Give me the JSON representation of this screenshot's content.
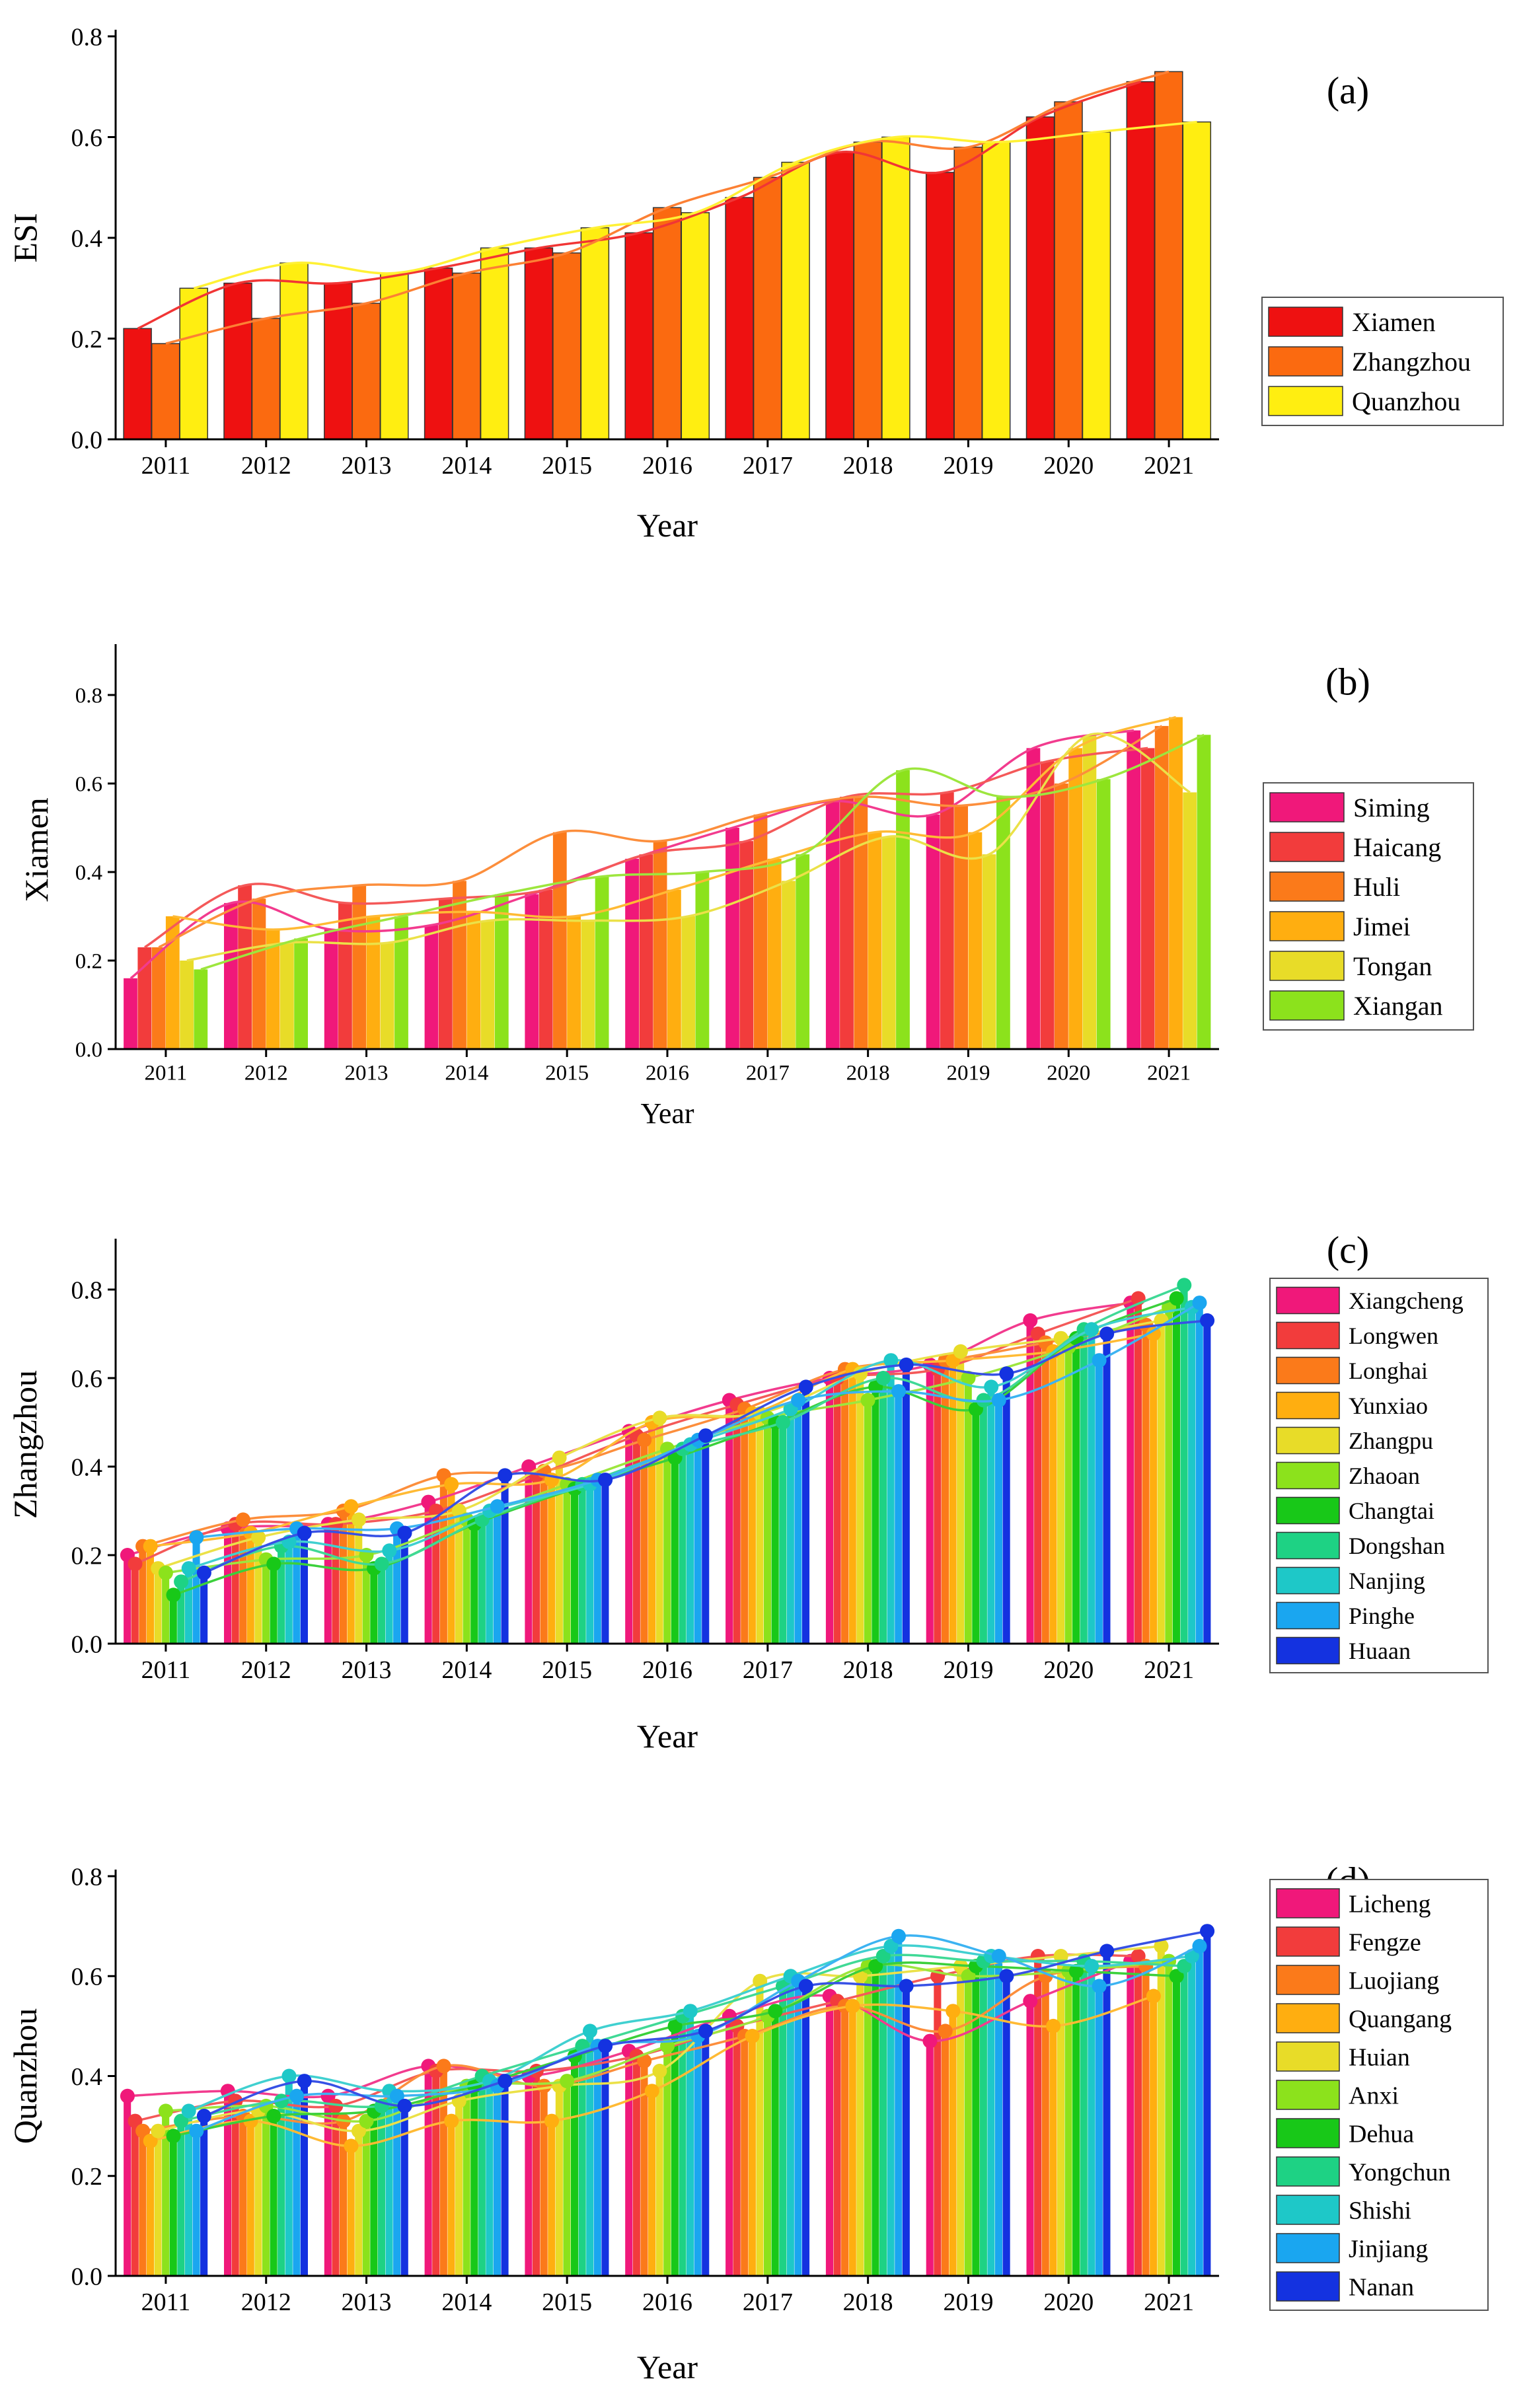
{
  "chart_data": [
    {
      "panel_label": "(a)",
      "type": "bar",
      "xlabel": "Year",
      "ylabel": "ESI",
      "ylim": [
        0,
        0.8
      ],
      "yticks": [
        "0.0",
        "0.2",
        "0.4",
        "0.6",
        "0.8"
      ],
      "categories": [
        "2011",
        "2012",
        "2013",
        "2014",
        "2015",
        "2016",
        "2017",
        "2018",
        "2019",
        "2020",
        "2021"
      ],
      "legend_position": "right",
      "trend_lines": true,
      "series": [
        {
          "name": "Xiamen",
          "color": "#ee1111",
          "values": [
            0.22,
            0.31,
            0.31,
            0.34,
            0.38,
            0.41,
            0.48,
            0.57,
            0.53,
            0.64,
            0.71
          ]
        },
        {
          "name": "Zhangzhou",
          "color": "#fb6a10",
          "values": [
            0.19,
            0.24,
            0.27,
            0.33,
            0.37,
            0.46,
            0.52,
            0.59,
            0.58,
            0.67,
            0.73
          ]
        },
        {
          "name": "Quanzhou",
          "color": "#ffee11",
          "values": [
            0.3,
            0.35,
            0.33,
            0.38,
            0.42,
            0.45,
            0.55,
            0.6,
            0.59,
            0.61,
            0.63
          ]
        }
      ]
    },
    {
      "panel_label": "(b)",
      "type": "bar",
      "xlabel": "Year",
      "ylabel": "Xiamen",
      "ylim": [
        0,
        0.9
      ],
      "yticks": [
        "0.0",
        "0.2",
        "0.4",
        "0.6",
        "0.8"
      ],
      "categories": [
        "2011",
        "2012",
        "2013",
        "2014",
        "2015",
        "2016",
        "2017",
        "2018",
        "2019",
        "2020",
        "2021"
      ],
      "legend_position": "right",
      "trend_lines": true,
      "series": [
        {
          "name": "Siming",
          "color": "#f0187a",
          "values": [
            0.16,
            0.33,
            0.27,
            0.28,
            0.35,
            0.43,
            0.5,
            0.56,
            0.53,
            0.68,
            0.72
          ]
        },
        {
          "name": "Haicang",
          "color": "#f23c3c",
          "values": [
            0.23,
            0.37,
            0.33,
            0.34,
            0.36,
            0.44,
            0.47,
            0.57,
            0.58,
            0.65,
            0.68
          ]
        },
        {
          "name": "Huli",
          "color": "#fb7a1a",
          "values": [
            0.23,
            0.34,
            0.37,
            0.38,
            0.49,
            0.47,
            0.53,
            0.57,
            0.55,
            0.6,
            0.73
          ]
        },
        {
          "name": "Jimei",
          "color": "#ffae10",
          "values": [
            0.3,
            0.27,
            0.3,
            0.31,
            0.3,
            0.36,
            0.43,
            0.49,
            0.49,
            0.68,
            0.75
          ]
        },
        {
          "name": "Tongan",
          "color": "#e8dc28",
          "values": [
            0.2,
            0.24,
            0.24,
            0.29,
            0.29,
            0.3,
            0.38,
            0.48,
            0.44,
            0.71,
            0.58
          ]
        },
        {
          "name": "Xiangan",
          "color": "#8ce21c",
          "values": [
            0.18,
            0.25,
            0.3,
            0.35,
            0.39,
            0.4,
            0.44,
            0.63,
            0.57,
            0.61,
            0.71
          ]
        }
      ]
    },
    {
      "panel_label": "(c)",
      "type": "bar",
      "xlabel": "Year",
      "ylabel": "Zhangzhou",
      "ylim": [
        0,
        0.9
      ],
      "yticks": [
        "0.0",
        "0.2",
        "0.4",
        "0.6",
        "0.8"
      ],
      "categories": [
        "2011",
        "2012",
        "2013",
        "2014",
        "2015",
        "2016",
        "2017",
        "2018",
        "2019",
        "2020",
        "2021"
      ],
      "legend_position": "right",
      "trend_lines": true,
      "series": [
        {
          "name": "Xiangcheng",
          "color": "#f0187a",
          "values": [
            0.2,
            0.26,
            0.27,
            0.32,
            0.4,
            0.48,
            0.55,
            0.6,
            0.63,
            0.73,
            0.77
          ]
        },
        {
          "name": "Longwen",
          "color": "#f23c3c",
          "values": [
            0.18,
            0.27,
            0.27,
            0.3,
            0.38,
            0.47,
            0.54,
            0.6,
            0.62,
            0.7,
            0.78
          ]
        },
        {
          "name": "Longhai",
          "color": "#fb7a1a",
          "values": [
            0.22,
            0.28,
            0.3,
            0.38,
            0.39,
            0.46,
            0.53,
            0.62,
            0.64,
            0.68,
            0.72
          ]
        },
        {
          "name": "Yunxiao",
          "color": "#ffae10",
          "values": [
            0.22,
            0.25,
            0.31,
            0.36,
            0.37,
            0.5,
            0.52,
            0.62,
            0.64,
            0.66,
            0.7
          ]
        },
        {
          "name": "Zhangpu",
          "color": "#e8dc28",
          "values": [
            0.17,
            0.24,
            0.28,
            0.3,
            0.42,
            0.51,
            0.52,
            0.61,
            0.66,
            0.69,
            0.73
          ]
        },
        {
          "name": "Zhaoan",
          "color": "#8ce21c",
          "values": [
            0.16,
            0.19,
            0.2,
            0.28,
            0.36,
            0.44,
            0.51,
            0.55,
            0.6,
            0.67,
            0.76
          ]
        },
        {
          "name": "Changtai",
          "color": "#18c818",
          "values": [
            0.11,
            0.18,
            0.17,
            0.27,
            0.35,
            0.42,
            0.5,
            0.58,
            0.53,
            0.69,
            0.78
          ]
        },
        {
          "name": "Dongshan",
          "color": "#1ed284",
          "values": [
            0.14,
            0.22,
            0.18,
            0.28,
            0.36,
            0.44,
            0.5,
            0.6,
            0.55,
            0.71,
            0.81
          ]
        },
        {
          "name": "Nanjing",
          "color": "#1ec8c8",
          "values": [
            0.17,
            0.23,
            0.21,
            0.3,
            0.36,
            0.45,
            0.53,
            0.64,
            0.58,
            0.71,
            0.76
          ]
        },
        {
          "name": "Pinghe",
          "color": "#1aa6f0",
          "values": [
            0.24,
            0.26,
            0.26,
            0.31,
            0.37,
            0.46,
            0.55,
            0.57,
            0.55,
            0.64,
            0.77
          ]
        },
        {
          "name": "Huaan",
          "color": "#1432e0",
          "values": [
            0.16,
            0.25,
            0.25,
            0.38,
            0.37,
            0.47,
            0.58,
            0.63,
            0.61,
            0.7,
            0.73
          ]
        }
      ]
    },
    {
      "panel_label": "(d)",
      "type": "bar",
      "xlabel": "Year",
      "ylabel": "Quanzhou",
      "ylim": [
        0,
        0.8
      ],
      "yticks": [
        "0.0",
        "0.2",
        "0.4",
        "0.6",
        "0.8"
      ],
      "categories": [
        "2011",
        "2012",
        "2013",
        "2014",
        "2015",
        "2016",
        "2017",
        "2018",
        "2019",
        "2020",
        "2021"
      ],
      "legend_position": "right",
      "trend_lines": true,
      "series": [
        {
          "name": "Licheng",
          "color": "#f0187a",
          "values": [
            0.36,
            0.37,
            0.36,
            0.42,
            0.4,
            0.45,
            0.52,
            0.56,
            0.47,
            0.55,
            0.63
          ]
        },
        {
          "name": "Fengze",
          "color": "#f23c3c",
          "values": [
            0.31,
            0.35,
            0.34,
            0.41,
            0.41,
            0.44,
            0.5,
            0.55,
            0.6,
            0.64,
            0.64
          ]
        },
        {
          "name": "Luojiang",
          "color": "#fb7a1a",
          "values": [
            0.29,
            0.32,
            0.31,
            0.42,
            0.38,
            0.43,
            0.48,
            0.54,
            0.49,
            0.6,
            0.62
          ]
        },
        {
          "name": "Quangang",
          "color": "#ffae10",
          "values": [
            0.27,
            0.31,
            0.26,
            0.31,
            0.31,
            0.37,
            0.48,
            0.54,
            0.53,
            0.5,
            0.56
          ]
        },
        {
          "name": "Huian",
          "color": "#e8dc28",
          "values": [
            0.29,
            0.33,
            0.29,
            0.35,
            0.38,
            0.41,
            0.59,
            0.6,
            0.62,
            0.64,
            0.66
          ]
        },
        {
          "name": "Anxi",
          "color": "#8ce21c",
          "values": [
            0.33,
            0.34,
            0.31,
            0.38,
            0.39,
            0.46,
            0.52,
            0.62,
            0.6,
            0.61,
            0.63
          ]
        },
        {
          "name": "Dehua",
          "color": "#18c818",
          "values": [
            0.28,
            0.32,
            0.33,
            0.38,
            0.44,
            0.5,
            0.53,
            0.62,
            0.62,
            0.61,
            0.6
          ]
        },
        {
          "name": "Yongchun",
          "color": "#1ed284",
          "values": [
            0.31,
            0.35,
            0.34,
            0.4,
            0.46,
            0.52,
            0.58,
            0.64,
            0.63,
            0.63,
            0.62
          ]
        },
        {
          "name": "Shishi",
          "color": "#1ec8c8",
          "values": [
            0.33,
            0.4,
            0.37,
            0.39,
            0.49,
            0.53,
            0.6,
            0.66,
            0.64,
            0.62,
            0.64
          ]
        },
        {
          "name": "Jinjiang",
          "color": "#1aa6f0",
          "values": [
            0.29,
            0.36,
            0.36,
            0.38,
            0.46,
            0.48,
            0.59,
            0.68,
            0.64,
            0.58,
            0.66
          ]
        },
        {
          "name": "Nanan",
          "color": "#1432e0",
          "values": [
            0.32,
            0.39,
            0.34,
            0.39,
            0.46,
            0.49,
            0.58,
            0.58,
            0.6,
            0.65,
            0.69
          ]
        }
      ]
    }
  ]
}
